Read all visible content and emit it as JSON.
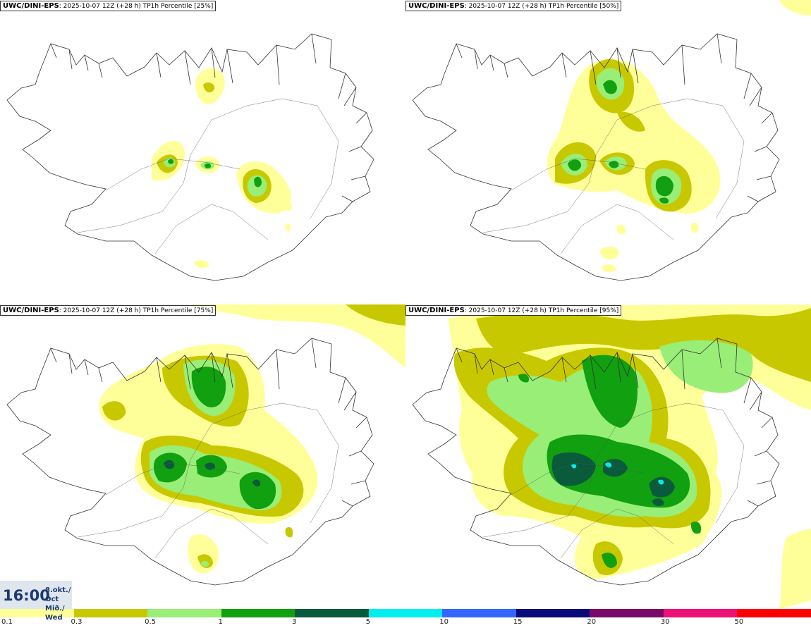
{
  "panels": [
    {
      "model": "UWC/DINI-EPS",
      "run": ": 2025-10-07 12Z (+28 h)",
      "field": " TP1h Percentile [25%]"
    },
    {
      "model": "UWC/DINI-EPS",
      "run": ": 2025-10-07 12Z (+28 h)",
      "field": " TP1h Percentile [50%]"
    },
    {
      "model": "UWC/DINI-EPS",
      "run": ": 2025-10-07 12Z (+28 h)",
      "field": " TP1h Percentile [75%]"
    },
    {
      "model": "UWC/DINI-EPS",
      "run": ": 2025-10-07 12Z (+28 h)",
      "field": " TP1h Percentile [95%]"
    }
  ],
  "valid": {
    "time": "16:00",
    "date_line1": "8.okt./ Oct",
    "date_line2": "Mið./ Wed"
  },
  "legend": {
    "colors": [
      "#ffff99",
      "#c8c800",
      "#99ee77",
      "#10a010",
      "#0a5a3c",
      "#00eeee",
      "#3366ff",
      "#0a0a7a",
      "#7a0a6a",
      "#ee1177",
      "#ff0000"
    ],
    "labels": [
      "0.1",
      "0.3",
      "0.5",
      "1",
      "3",
      "5",
      "10",
      "15",
      "20",
      "30",
      "50"
    ]
  }
}
